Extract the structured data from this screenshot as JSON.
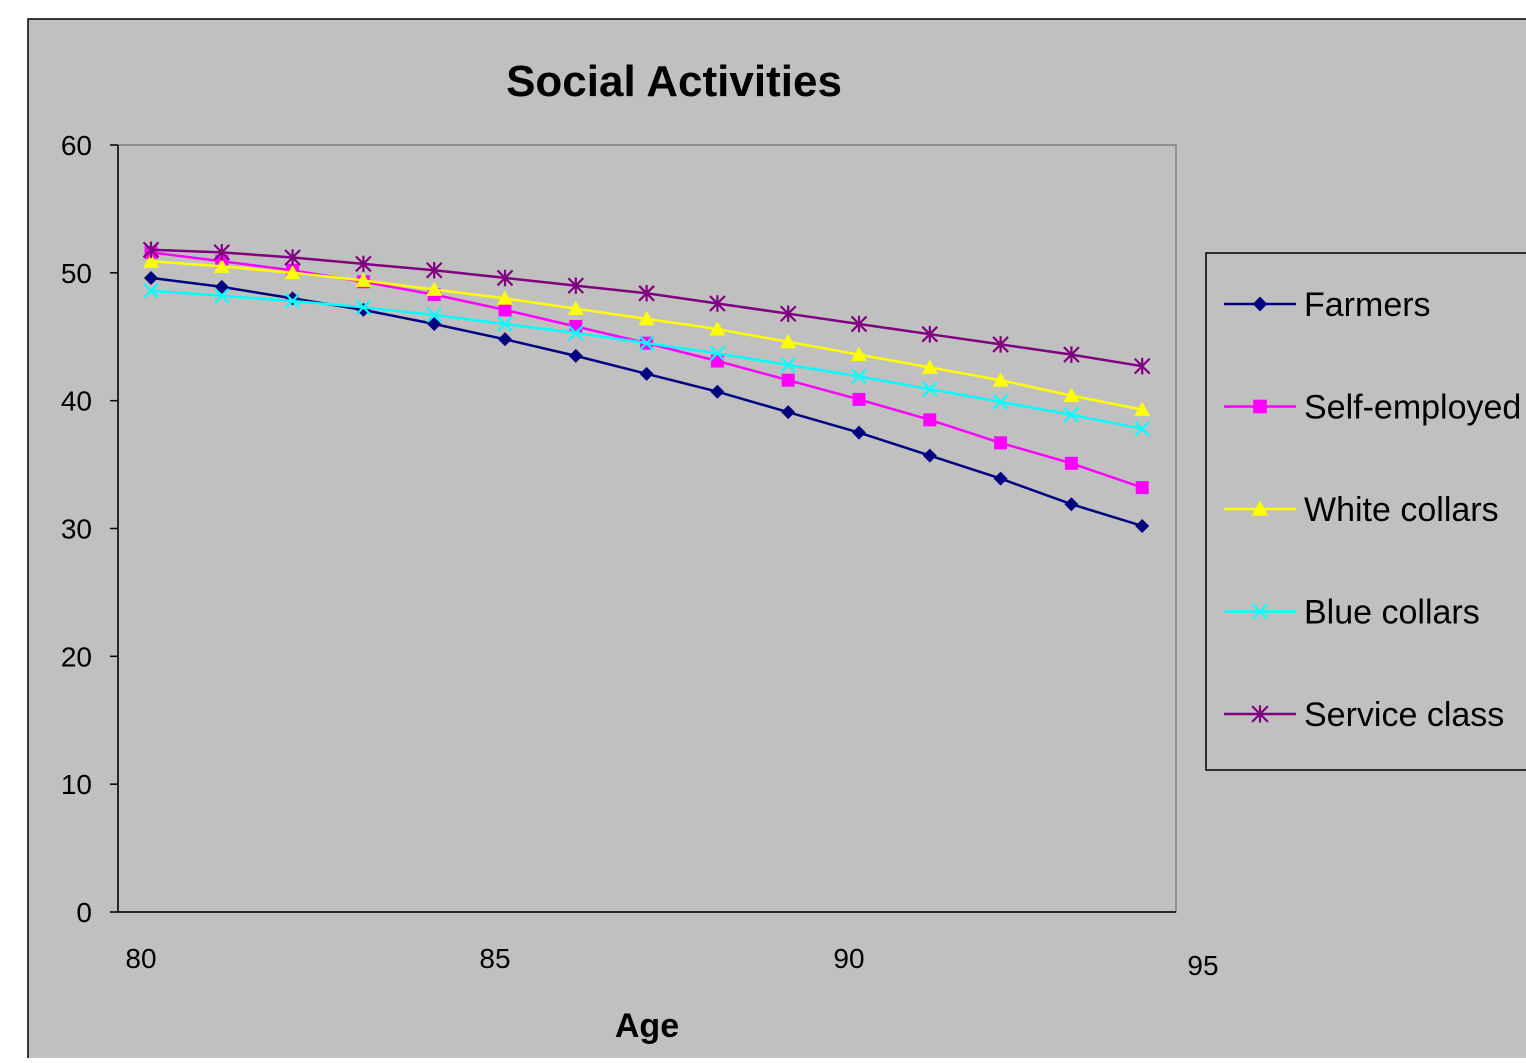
{
  "chart_data": {
    "type": "line",
    "title": "Social Activities",
    "xlabel": "Age",
    "ylabel": "",
    "xlim": [
      80,
      95
    ],
    "ylim": [
      0,
      60
    ],
    "x_ticks": [
      "80",
      "85",
      "90",
      "95"
    ],
    "y_ticks": [
      "0",
      "10",
      "20",
      "30",
      "40",
      "50",
      "60"
    ],
    "grid": false,
    "legend_position": "right",
    "x": [
      80,
      81,
      82,
      83,
      84,
      85,
      86,
      87,
      88,
      89,
      90,
      91,
      92,
      93,
      94
    ],
    "series": [
      {
        "name": "Farmers",
        "color": "#000080",
        "marker": "diamond",
        "values": [
          49.6,
          48.9,
          48.0,
          47.1,
          46.0,
          44.8,
          43.5,
          42.1,
          40.7,
          39.1,
          37.5,
          35.7,
          33.9,
          31.9,
          30.2
        ]
      },
      {
        "name": "Self-employed",
        "color": "#ff00ff",
        "marker": "square",
        "values": [
          51.6,
          50.9,
          50.2,
          49.3,
          48.3,
          47.1,
          45.8,
          44.5,
          43.1,
          41.6,
          40.1,
          38.5,
          36.7,
          35.1,
          33.2
        ]
      },
      {
        "name": "White collars",
        "color": "#ffff00",
        "marker": "triangle",
        "values": [
          50.9,
          50.5,
          50.0,
          49.4,
          48.7,
          48.0,
          47.2,
          46.4,
          45.6,
          44.6,
          43.6,
          42.6,
          41.6,
          40.4,
          39.3
        ]
      },
      {
        "name": "Blue collars",
        "color": "#00ffff",
        "marker": "x",
        "values": [
          48.6,
          48.2,
          47.8,
          47.3,
          46.7,
          46.0,
          45.3,
          44.5,
          43.7,
          42.8,
          41.9,
          40.9,
          39.9,
          38.9,
          37.8
        ]
      },
      {
        "name": "Service class",
        "color": "#800080",
        "marker": "star",
        "values": [
          51.8,
          51.6,
          51.2,
          50.7,
          50.2,
          49.6,
          49.0,
          48.4,
          47.6,
          46.8,
          46.0,
          45.2,
          44.4,
          43.6,
          42.7
        ]
      }
    ]
  }
}
